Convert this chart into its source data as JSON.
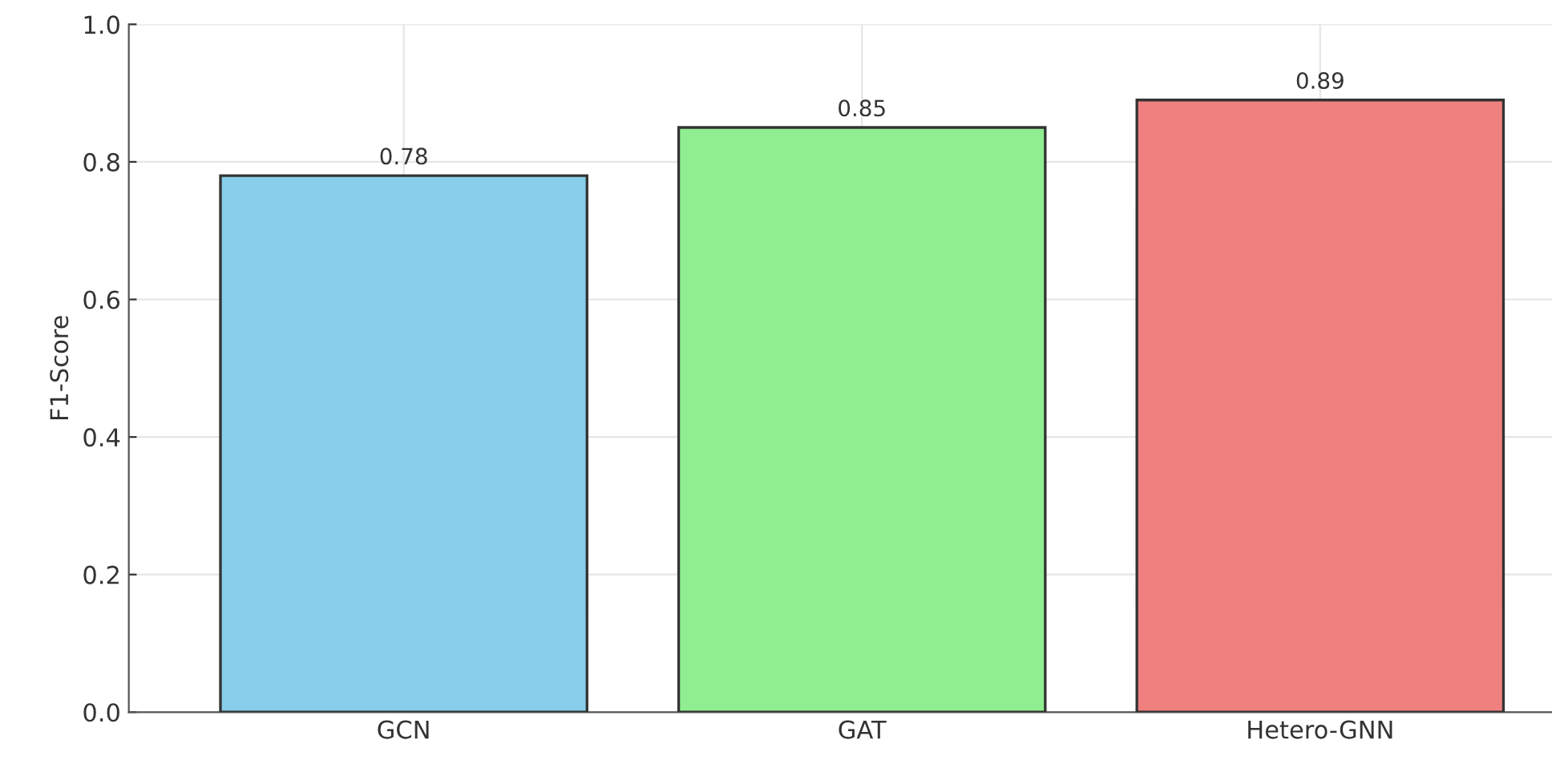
{
  "chart_data": {
    "type": "bar",
    "ylabel": "F1-Score",
    "categories": [
      "GCN",
      "GAT",
      "Hetero-GNN"
    ],
    "values": [
      0.78,
      0.85,
      0.89
    ],
    "colors": [
      "#87ceeb",
      "#90ee90",
      "#f08080"
    ],
    "ylim": [
      0,
      1.0
    ],
    "yticks": [
      {
        "value": 0,
        "label": "0.0"
      },
      {
        "value": 0.2,
        "label": "0.2"
      },
      {
        "value": 0.4,
        "label": "0.4"
      },
      {
        "value": 0.6,
        "label": "0.6"
      },
      {
        "value": 0.8,
        "label": "0.8"
      },
      {
        "value": 1.0,
        "label": "1.0"
      }
    ],
    "grid": true,
    "data_labels": true
  }
}
